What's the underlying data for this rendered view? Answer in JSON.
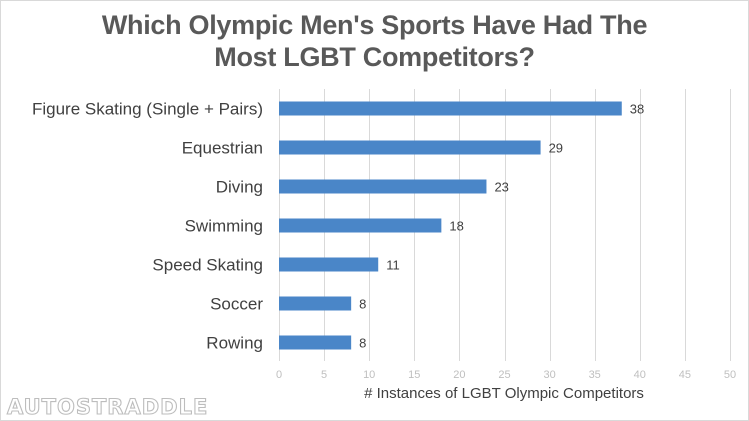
{
  "chart_data": {
    "type": "bar",
    "orientation": "horizontal",
    "title": "Which Olympic Men's Sports Have Had The Most LGBT Competitors?",
    "title_lines": [
      "Which Olympic Men's Sports Have Had The",
      "Most LGBT Competitors?"
    ],
    "categories": [
      "Figure Skating (Single + Pairs)",
      "Equestrian",
      "Diving",
      "Swimming",
      "Speed Skating",
      "Soccer",
      "Rowing"
    ],
    "values": [
      38,
      29,
      23,
      18,
      11,
      8,
      8
    ],
    "xlabel": "# Instances  of LGBT Olympic Competitors",
    "ylabel": "",
    "xlim": [
      0,
      50
    ],
    "xticks": [
      0,
      5,
      10,
      15,
      20,
      25,
      30,
      35,
      40,
      45,
      50
    ],
    "data_labels": true,
    "grid": "vertical",
    "legend": "none",
    "bar_color": "#4a86c8"
  },
  "watermark": "AUTOSTRADDLE"
}
